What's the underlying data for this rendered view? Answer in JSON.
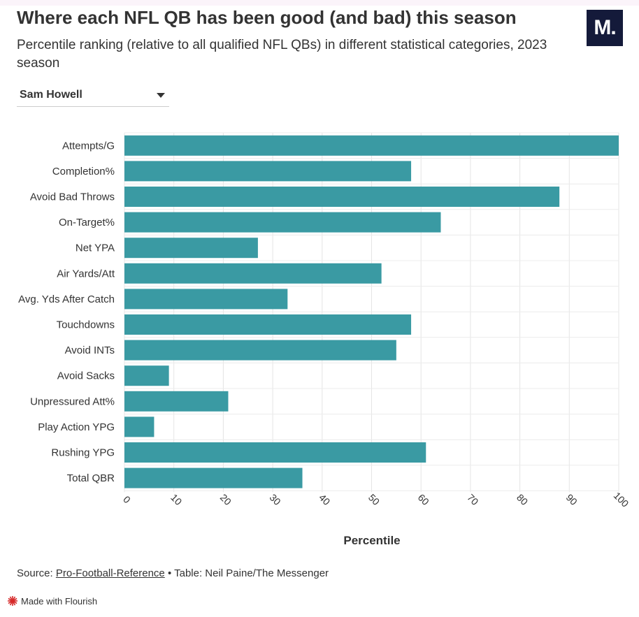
{
  "header": {
    "title": "Where each NFL QB has been good (and bad) this season",
    "subtitle": "Percentile ranking (relative to all qualified NFL QBs) in different statistical categories, 2023 season",
    "logo_text": "M."
  },
  "selector": {
    "value": "Sam Howell"
  },
  "footer": {
    "source_prefix": "Source:",
    "source_link": "Pro-Football-Reference",
    "source_suffix": "• Table: Neil Paine/The Messenger",
    "badge": "Made with Flourish"
  },
  "colors": {
    "bar": "#3a9aa3",
    "logo_bg": "#141a3a",
    "flourish": "#d62a2a"
  },
  "chart_data": {
    "type": "bar",
    "orientation": "horizontal",
    "categories": [
      "Attempts/G",
      "Completion%",
      "Avoid Bad Throws",
      "On-Target%",
      "Net YPA",
      "Air Yards/Att",
      "Avg. Yds After Catch",
      "Touchdowns",
      "Avoid INTs",
      "Avoid Sacks",
      "Unpressured Att%",
      "Play Action YPG",
      "Rushing YPG",
      "Total QBR"
    ],
    "values": [
      100,
      58,
      88,
      64,
      27,
      52,
      33,
      58,
      55,
      9,
      21,
      6,
      61,
      36
    ],
    "xlabel": "Percentile",
    "ylabel": "",
    "xlim": [
      0,
      100
    ],
    "xticks": [
      0,
      10,
      20,
      30,
      40,
      50,
      60,
      70,
      80,
      90,
      100
    ],
    "grid": true
  }
}
